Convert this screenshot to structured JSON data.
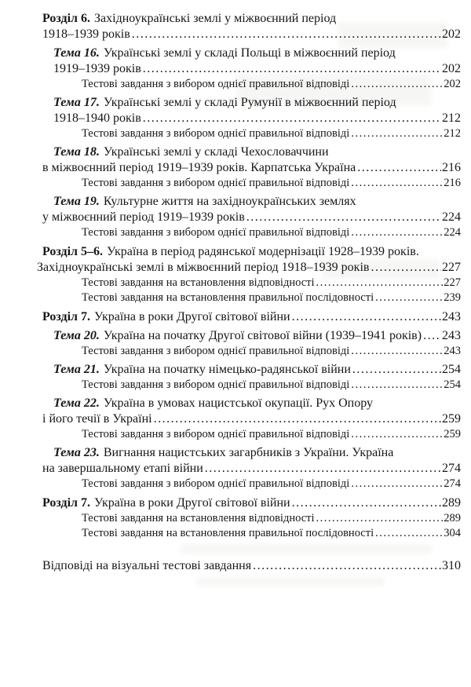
{
  "toc": {
    "entries": [
      {
        "level": "chapter",
        "prefix": "Розділ 6.",
        "lines": [
          "Західноукраїнські землі у міжвоєнний період",
          "1918–1939 років"
        ],
        "page": "202"
      },
      {
        "level": "topic",
        "prefix": "Тема 16.",
        "lines": [
          "Українські землі у складі Польщі в міжвоєнний період",
          "1919–1939 років"
        ],
        "page": "202"
      },
      {
        "level": "sub",
        "prefix": "",
        "lines": [
          "Тестові завдання з вибором однієї правильної відповіді"
        ],
        "page": "202"
      },
      {
        "level": "topic",
        "prefix": "Тема 17.",
        "lines": [
          "Українські землі у складі Румунії в міжвоєнний період",
          "1918–1940 років"
        ],
        "page": "212"
      },
      {
        "level": "sub",
        "prefix": "",
        "lines": [
          "Тестові завдання з вибором однієї правильної відповіді"
        ],
        "page": "212"
      },
      {
        "level": "topic",
        "prefix": "Тема 18.",
        "cont_align": "outer",
        "lines": [
          "Українські землі у складі Чехословаччини",
          "в міжвоєнний період 1919–1939 років. Карпатська Україна"
        ],
        "page": "216"
      },
      {
        "level": "sub",
        "prefix": "",
        "lines": [
          "Тестові завдання з вибором однієї правильної відповіді"
        ],
        "page": "216"
      },
      {
        "level": "topic",
        "prefix": "Тема 19.",
        "cont_align": "outer",
        "lines": [
          "Культурне життя на західноукраїнських землях",
          "у міжвоєнний період 1919–1939 років"
        ],
        "page": "224"
      },
      {
        "level": "sub",
        "prefix": "",
        "lines": [
          "Тестові завдання з вибором однієї правильної відповіді"
        ],
        "page": "224"
      },
      {
        "level": "chapter",
        "prefix": "Розділ 5–6.",
        "cont_align": "outer",
        "lines": [
          "Україна в період радянської модернізації 1928–1939 років.",
          "Західноукраїнські землі в міжвоєнний період 1918–1939 років"
        ],
        "page": "227"
      },
      {
        "level": "sub",
        "prefix": "",
        "lines": [
          "Тестові завдання на встановлення відповідності"
        ],
        "page": "227"
      },
      {
        "level": "sub",
        "prefix": "",
        "lines": [
          "Тестові завдання на встановлення правильної послідовності"
        ],
        "page": "239"
      },
      {
        "level": "chapter",
        "prefix": "Розділ 7.",
        "lines": [
          "Україна в роки Другої світової війни"
        ],
        "page": "243"
      },
      {
        "level": "topic",
        "prefix": "Тема 20.",
        "lines": [
          "Україна на початку Другої світової війни (1939–1941 років)"
        ],
        "page": "243"
      },
      {
        "level": "sub",
        "prefix": "",
        "lines": [
          "Тестові завдання з вибором однієї правильної відповіді"
        ],
        "page": "243"
      },
      {
        "level": "topic",
        "prefix": "Тема 21.",
        "lines": [
          "Україна на початку німецько-радянської війни"
        ],
        "page": "254"
      },
      {
        "level": "sub",
        "prefix": "",
        "lines": [
          "Тестові завдання з вибором однієї правильної відповіді"
        ],
        "page": "254"
      },
      {
        "level": "topic",
        "prefix": "Тема 22.",
        "cont_align": "outer",
        "lines": [
          "Україна в умовах нацистської окупації. Рух Опору",
          "і його течії в Україні"
        ],
        "page": "259"
      },
      {
        "level": "sub",
        "prefix": "",
        "lines": [
          "Тестові завдання з вибором однієї правильної відповіді"
        ],
        "page": "259"
      },
      {
        "level": "topic",
        "prefix": "Тема 23.",
        "cont_align": "outer",
        "lines": [
          "Вигнання нацистських загарбників з України. Україна",
          "на завершальному етапі війни"
        ],
        "page": "274"
      },
      {
        "level": "sub",
        "prefix": "",
        "lines": [
          "Тестові завдання з вибором однієї правильної відповіді"
        ],
        "page": "274"
      },
      {
        "level": "chapter",
        "prefix": "Розділ 7.",
        "lines": [
          "Україна в роки Другої світової війни"
        ],
        "page": "289"
      },
      {
        "level": "sub",
        "prefix": "",
        "lines": [
          "Тестові завдання на встановлення відповідності"
        ],
        "page": "289"
      },
      {
        "level": "sub",
        "prefix": "",
        "lines": [
          "Тестові завдання на встановлення правильної послідовності"
        ],
        "page": "304"
      },
      {
        "level": "answers",
        "prefix": "",
        "lines": [
          "Відповіді на візуальні тестові завдання"
        ],
        "page": "310"
      }
    ]
  }
}
